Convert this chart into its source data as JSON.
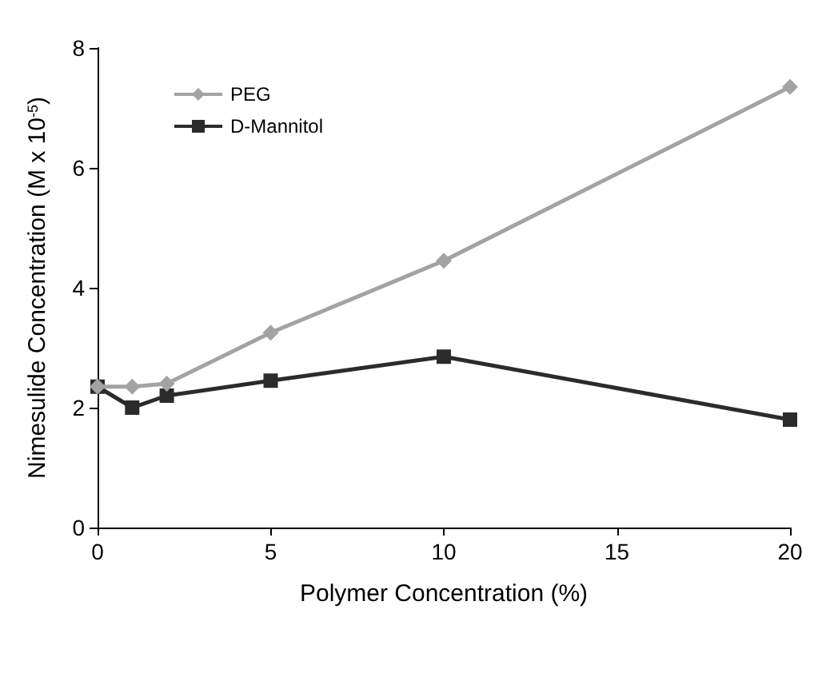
{
  "chart_data": {
    "type": "line",
    "xlabel": "Polymer Concentration (%)",
    "ylabel": "Nimesulide Concentration (M x 10$^{-5}$)",
    "x": [
      0,
      1,
      2,
      5,
      10,
      20
    ],
    "series": [
      {
        "name": "PEG",
        "color": "#a3a3a3",
        "marker": "diamond",
        "values": [
          2.35,
          2.35,
          2.4,
          3.25,
          4.45,
          7.35
        ]
      },
      {
        "name": "D-Mannitol",
        "color": "#2b2b2b",
        "marker": "square",
        "values": [
          2.35,
          2.0,
          2.2,
          2.45,
          2.85,
          1.8
        ]
      }
    ],
    "xlim": [
      0,
      20
    ],
    "xticks": [
      0,
      5,
      10,
      15,
      20
    ],
    "ylim": [
      0,
      8
    ],
    "yticks": [
      0,
      2,
      4,
      6,
      8
    ],
    "grid": false,
    "legend": "top left"
  }
}
